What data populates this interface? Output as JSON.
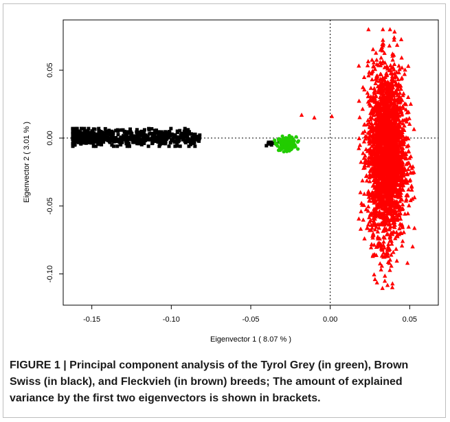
{
  "figure": {
    "caption_label": "FIGURE 1 |",
    "caption_text": "Principal component analysis of the Tyrol Grey (in green), Brown Swiss (in black), and Fleckvieh (in brown) breeds; The amount of explained variance by the first two eigenvectors is shown in brackets."
  },
  "chart_data": {
    "type": "scatter",
    "title": "",
    "xlabel": "Eigenvector 1 ( 8.07 % )",
    "ylabel": "Eigenvector 2 ( 3.01 % )",
    "xlim": [
      -0.168,
      0.068
    ],
    "ylim": [
      -0.123,
      0.087
    ],
    "x_ticks": [
      -0.15,
      -0.1,
      -0.05,
      0.0,
      0.05
    ],
    "x_tick_labels": [
      "-0.15",
      "-0.10",
      "-0.05",
      "0.00",
      "0.05"
    ],
    "y_ticks": [
      0.05,
      0.0,
      -0.05,
      -0.1
    ],
    "y_tick_labels": [
      "0.05",
      "0.00",
      "-0.05",
      "-0.10"
    ],
    "reference_lines": {
      "x": 0.0,
      "y": 0.0,
      "style": "dotted"
    },
    "grid": false,
    "series": [
      {
        "color": "#000000",
        "marker": "square",
        "clusters": [
          {
            "x_range": [
              -0.162,
              -0.082
            ],
            "y_range": [
              -0.006,
              0.007
            ],
            "n": 600
          },
          {
            "x_range": [
              -0.042,
              -0.032
            ],
            "y_range": [
              -0.008,
              0.0
            ],
            "n": 8
          }
        ]
      },
      {
        "color": "#22cc00",
        "marker": "circle",
        "clusters": [
          {
            "x_range": [
              -0.035,
              -0.02
            ],
            "y_range": [
              -0.01,
              0.002
            ],
            "n": 160
          }
        ]
      },
      {
        "color": "#ff0000",
        "marker": "triangle",
        "clusters": [
          {
            "x_range": [
              0.018,
              0.053
            ],
            "y_range": [
              -0.115,
              0.08
            ],
            "n": 2600
          }
        ],
        "outliers": [
          {
            "x": -0.01,
            "y": 0.015
          },
          {
            "x": 0.001,
            "y": 0.016
          },
          {
            "x": -0.018,
            "y": 0.017
          }
        ]
      }
    ]
  }
}
